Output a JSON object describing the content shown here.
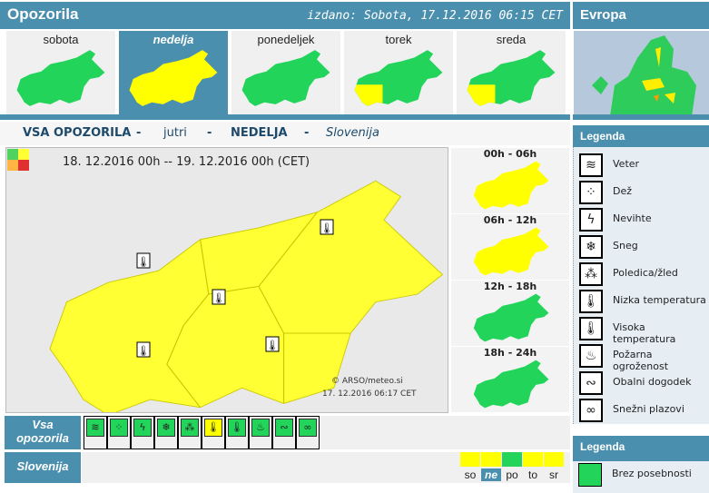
{
  "header": {
    "title": "Opozorila",
    "issued": "izdano: Sobota, 17.12.2016 06:15 CET"
  },
  "europe": {
    "title": "Evropa"
  },
  "colors": {
    "accent": "#4b8fae",
    "green": "#22d45a",
    "yellow": "#ffff00",
    "orange": "#ffb444",
    "red": "#e03030"
  },
  "days": [
    {
      "label": "sobota",
      "map": "green"
    },
    {
      "label": "nedelja",
      "map": "yellow",
      "selected": true
    },
    {
      "label": "ponedeljek",
      "map": "green"
    },
    {
      "label": "torek",
      "map": "green-sw-yellow"
    },
    {
      "label": "sreda",
      "map": "green-sw-yellow"
    }
  ],
  "title": {
    "a": "VSA OPOZORILA",
    "sep": "-",
    "b": "jutri",
    "c": "NEDELJA",
    "d": "Slovenija"
  },
  "map": {
    "period": "18. 12.2016  00h  --  19. 12.2016  00h     (CET)",
    "copyright": "© ARSO/meteo.si",
    "stamp": "17. 12.2016  06:17 CET"
  },
  "periods": [
    {
      "label": "00h - 06h",
      "map": "yellow"
    },
    {
      "label": "06h - 12h",
      "map": "yellow"
    },
    {
      "label": "12h - 18h",
      "map": "green"
    },
    {
      "label": "18h - 24h",
      "map": "green"
    }
  ],
  "legend": {
    "title": "Legenda",
    "items": [
      {
        "label": "Veter",
        "icon": "windsock-icon",
        "glyph": "≋"
      },
      {
        "label": "Dež",
        "icon": "rain-icon",
        "glyph": "⁘"
      },
      {
        "label": "Nevihte",
        "icon": "lightning-icon",
        "glyph": "ϟ"
      },
      {
        "label": "Sneg",
        "icon": "snowflake-icon",
        "glyph": "❄"
      },
      {
        "label": "Poledica/žled",
        "icon": "ice-icon",
        "glyph": "⁂"
      },
      {
        "label": "Nizka temperatura",
        "icon": "thermometer-low-icon",
        "glyph": "🌡"
      },
      {
        "label": "Visoka temperatura",
        "icon": "thermometer-high-icon",
        "glyph": "🌡"
      },
      {
        "label": "Požarna ogroženost",
        "icon": "fire-icon",
        "glyph": "♨"
      },
      {
        "label": "Obalni dogodek",
        "icon": "waves-icon",
        "glyph": "∾"
      },
      {
        "label": "Snežni plazovi",
        "icon": "avalanche-icon",
        "glyph": "∞"
      }
    ]
  },
  "legend2": {
    "title": "Legenda",
    "items": [
      {
        "label": "Brez posebnosti",
        "color": "#22d45a"
      }
    ]
  },
  "rows": {
    "all": "Vsa opozorila",
    "region": "Slovenija"
  },
  "type_levels": [
    "green",
    "green",
    "green",
    "green",
    "green",
    "yellow",
    "green",
    "green",
    "green",
    "green"
  ],
  "summary_days": [
    {
      "label": "so",
      "color": "yellow"
    },
    {
      "label": "ne",
      "color": "yellow",
      "selected": true
    },
    {
      "label": "po",
      "color": "green"
    },
    {
      "label": "to",
      "color": "yellow"
    },
    {
      "label": "sr",
      "color": "yellow"
    }
  ]
}
